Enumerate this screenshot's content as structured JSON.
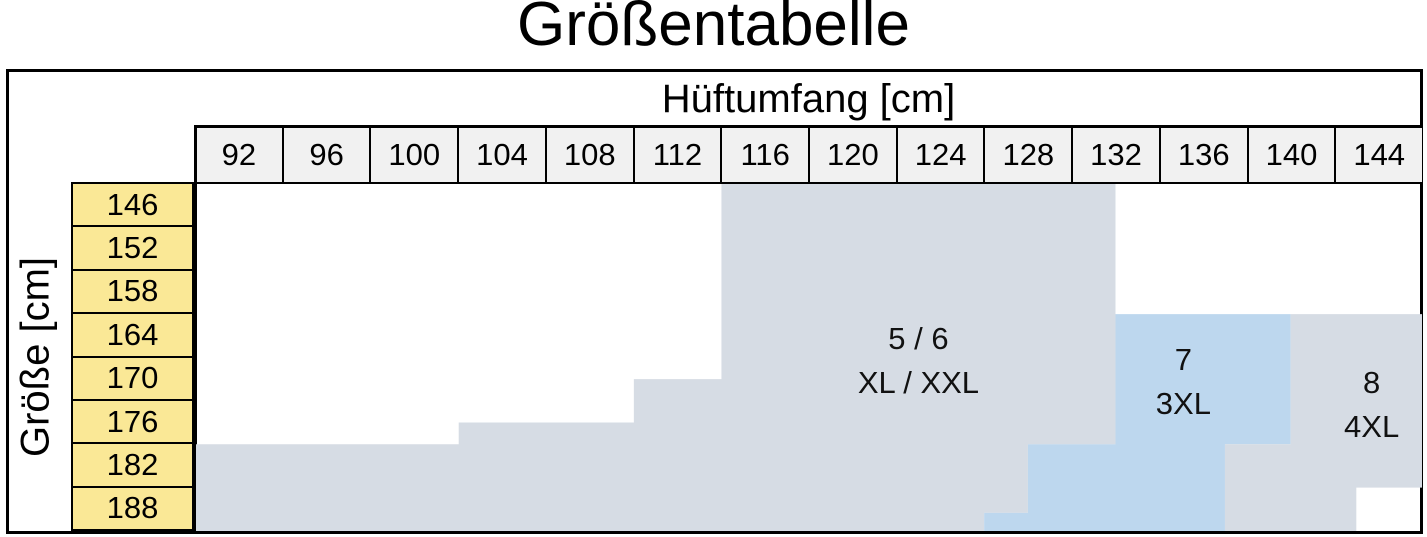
{
  "title": "Größentabelle",
  "axes": {
    "hip_label": "Hüftumfang [cm]",
    "height_label": "Größe [cm]"
  },
  "chart_data": {
    "type": "heatmap",
    "title": "Größentabelle",
    "x_axis": {
      "label": "Hüftumfang [cm]",
      "tick_labels": [
        "92",
        "96",
        "100",
        "104",
        "108",
        "112",
        "116",
        "120",
        "124",
        "128",
        "132",
        "136",
        "140",
        "144"
      ],
      "range_cm": [
        90,
        146
      ],
      "grid": false
    },
    "y_axis": {
      "label": "Größe [cm]",
      "tick_labels": [
        "146",
        "152",
        "158",
        "164",
        "170",
        "176",
        "182",
        "188"
      ],
      "range_cm": [
        143,
        191
      ],
      "grid": false
    },
    "regions": [
      {
        "id": "size-5-6",
        "label_lines": [
          "5 / 6",
          "XL / XXL"
        ],
        "color": "#D6DCE4",
        "label_anchor_cm": [
          123,
          167.5
        ],
        "polygon_cm": [
          [
            114,
            143
          ],
          [
            132,
            143
          ],
          [
            132,
            179
          ],
          [
            128,
            179
          ],
          [
            128,
            188.5
          ],
          [
            126,
            188.5
          ],
          [
            126,
            191
          ],
          [
            90,
            191
          ],
          [
            90,
            179
          ],
          [
            102,
            179
          ],
          [
            102,
            176
          ],
          [
            110,
            176
          ],
          [
            110,
            170
          ],
          [
            114,
            170
          ]
        ]
      },
      {
        "id": "size-7",
        "label_lines": [
          "7",
          "3XL"
        ],
        "color": "#BDD7EE",
        "label_anchor_cm": [
          135.1,
          170.4
        ],
        "polygon_cm": [
          [
            132,
            161
          ],
          [
            140,
            161
          ],
          [
            140,
            179
          ],
          [
            137,
            179
          ],
          [
            137,
            191
          ],
          [
            126,
            191
          ],
          [
            126,
            188.5
          ],
          [
            128,
            188.5
          ],
          [
            128,
            179
          ],
          [
            132,
            179
          ]
        ]
      },
      {
        "id": "size-8",
        "label_lines": [
          "8",
          "4XL"
        ],
        "color": "#D6DCE4",
        "label_anchor_cm": [
          143.7,
          173.6
        ],
        "polygon_cm": [
          [
            140,
            161
          ],
          [
            146,
            161
          ],
          [
            146,
            185
          ],
          [
            143,
            185
          ],
          [
            143,
            191
          ],
          [
            137,
            191
          ],
          [
            137,
            179
          ],
          [
            140,
            179
          ]
        ]
      }
    ],
    "colors": {
      "region_gray": "#D6DCE4",
      "region_blue": "#BDD7EE",
      "row_header_yellow": "#FAE896",
      "col_header_gray": "#F1F1F1",
      "border_black": "#000000",
      "background_white": "#FFFFFF"
    }
  }
}
